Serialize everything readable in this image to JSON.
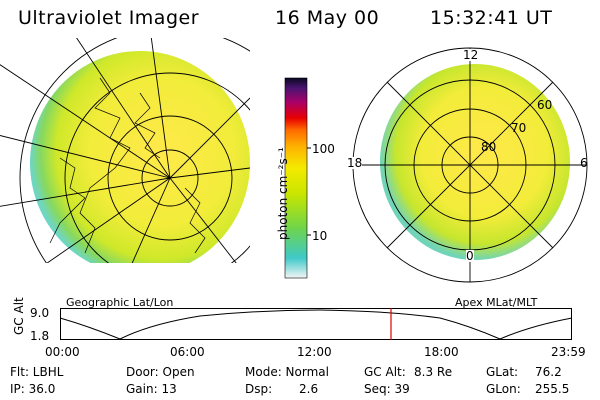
{
  "header": {
    "instrument": "Ultraviolet Imager",
    "date": "16 May 00",
    "time": "15:32:41 UT"
  },
  "colorbar": {
    "unit": "photon cm⁻²s⁻¹",
    "ticks": [
      "100",
      "10"
    ],
    "colors": [
      "#f4f4f4",
      "#3fc9c9",
      "#6fd44a",
      "#c8e600",
      "#f4ea00",
      "#ffb000",
      "#ff6a00",
      "#e80000",
      "#a8006a",
      "#4a1470",
      "#080820"
    ]
  },
  "left_map": {
    "label": "Geographic Lat/Lon"
  },
  "right_map": {
    "label": "Apex MLat/MLT",
    "mlt_labels": {
      "top": "12",
      "left": "18",
      "right": "6",
      "bottom": "0"
    },
    "lat_labels": [
      "60",
      "70",
      "80"
    ]
  },
  "gc_alt_plot": {
    "ylabel": "GC Alt",
    "ymax": "9.0",
    "ymin": "1.8",
    "xticks": [
      "00:00",
      "06:00",
      "12:00",
      "18:00",
      "23:59"
    ],
    "current_time_marker": "15:32"
  },
  "info": {
    "row1": {
      "filter": "Flt: LBHL",
      "door": "Door: Open",
      "mode": "Mode: Normal",
      "gc_alt_label": "GC Alt:",
      "gc_alt_value": "8.3 Re",
      "glat_label": "GLat:",
      "glat_value": "76.2"
    },
    "row2": {
      "ip": "IP: 36.0",
      "gain": "Gain: 13",
      "dsp_label": "Dsp:",
      "dsp_value": "2.6",
      "seq": "Seq: 39",
      "glon_label": "GLon:",
      "glon_value": "255.5"
    }
  }
}
